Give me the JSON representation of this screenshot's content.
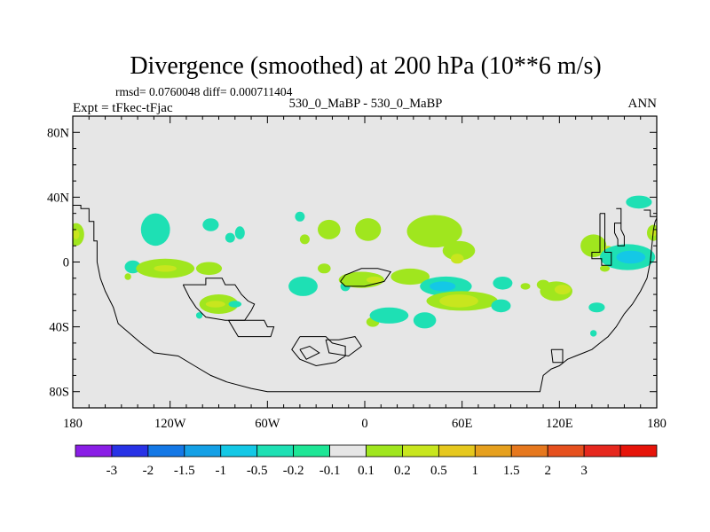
{
  "chart_data": {
    "type": "heatmap",
    "title": "Divergence (smoothed) at 200 hPa (10**6 m/s)",
    "stats": "rmsd= 0.0760048 diff= 0.000711404",
    "left_label": "Expt = tFkec-tFjac",
    "center_label": "530_0_MaBP - 530_0_MaBP",
    "right_label": "ANN",
    "xlim": [
      -180,
      180
    ],
    "ylim": [
      -90,
      90
    ],
    "x_ticks": [
      {
        "value": -180,
        "label": "180"
      },
      {
        "value": -120,
        "label": "120W"
      },
      {
        "value": -60,
        "label": "60W"
      },
      {
        "value": 0,
        "label": "0"
      },
      {
        "value": 60,
        "label": "60E"
      },
      {
        "value": 120,
        "label": "120E"
      },
      {
        "value": 180,
        "label": "180"
      }
    ],
    "y_ticks": [
      {
        "value": 80,
        "label": "80N"
      },
      {
        "value": 40,
        "label": "40N"
      },
      {
        "value": 0,
        "label": "0"
      },
      {
        "value": -40,
        "label": "40S"
      },
      {
        "value": -80,
        "label": "80S"
      }
    ],
    "background_color": "#e6e6e6",
    "colorbar": {
      "colors": [
        "#8a1ee6",
        "#2832e6",
        "#1478e6",
        "#14a0e6",
        "#14c8e6",
        "#1ee0b4",
        "#1ee696",
        "#e6e6e6",
        "#a0e61e",
        "#c8e61e",
        "#e6c81e",
        "#e6a01e",
        "#e6781e",
        "#e6501e",
        "#e6281e",
        "#e6140a"
      ],
      "labels": [
        "-3",
        "-2",
        "-1.5",
        "-1",
        "-0.5",
        "-0.2",
        "-0.1",
        "0.1",
        "0.2",
        "0.5",
        "1",
        "1.5",
        "2",
        "3"
      ]
    },
    "blobs": [
      {
        "lon": -178,
        "lat": 17,
        "rlon": 5,
        "rlat": 7,
        "level": 0.2
      },
      {
        "lon": -178,
        "lat": 17,
        "rlon": 2,
        "rlat": 3,
        "level": 0.5
      },
      {
        "lon": -129,
        "lat": 20,
        "rlon": 9,
        "rlat": 10,
        "level": -0.2
      },
      {
        "lon": -95,
        "lat": 23,
        "rlon": 5,
        "rlat": 4,
        "level": -0.2
      },
      {
        "lon": -83,
        "lat": 15,
        "rlon": 3,
        "rlat": 3,
        "level": -0.2
      },
      {
        "lon": -77,
        "lat": 18,
        "rlon": 3,
        "rlat": 4,
        "level": -0.2
      },
      {
        "lon": -40,
        "lat": 28,
        "rlon": 3,
        "rlat": 3,
        "level": -0.2
      },
      {
        "lon": -37,
        "lat": 14,
        "rlon": 3,
        "rlat": 3,
        "level": 0.2
      },
      {
        "lon": -22,
        "lat": 20,
        "rlon": 7,
        "rlat": 6,
        "level": 0.2
      },
      {
        "lon": 2,
        "lat": 20,
        "rlon": 8,
        "rlat": 7,
        "level": 0.2
      },
      {
        "lon": 43,
        "lat": 19,
        "rlon": 17,
        "rlat": 10,
        "level": 0.2
      },
      {
        "lon": 58,
        "lat": 7,
        "rlon": 10,
        "rlat": 6,
        "level": 0.2
      },
      {
        "lon": 57,
        "lat": 2,
        "rlon": 4,
        "rlat": 3,
        "level": 0.5
      },
      {
        "lon": -143,
        "lat": -3,
        "rlon": 5,
        "rlat": 4,
        "level": -0.2
      },
      {
        "lon": -123,
        "lat": -4,
        "rlon": 18,
        "rlat": 6,
        "level": 0.2
      },
      {
        "lon": -123,
        "lat": -4,
        "rlon": 7,
        "rlat": 2,
        "level": 0.5
      },
      {
        "lon": -96,
        "lat": -4,
        "rlon": 8,
        "rlat": 4,
        "level": 0.2
      },
      {
        "lon": -146,
        "lat": -9,
        "rlon": 2,
        "rlat": 2,
        "level": 0.2
      },
      {
        "lon": -25,
        "lat": -4,
        "rlon": 4,
        "rlat": 3,
        "level": 0.2
      },
      {
        "lon": -38,
        "lat": -15,
        "rlon": 9,
        "rlat": 6,
        "level": -0.2
      },
      {
        "lon": -12,
        "lat": -15,
        "rlon": 3,
        "rlat": 3,
        "level": -0.2
      },
      {
        "lon": -2,
        "lat": -11,
        "rlon": 14,
        "rlat": 5,
        "level": 0.2
      },
      {
        "lon": 6,
        "lat": -11,
        "rlon": 5,
        "rlat": 2,
        "level": 0.5
      },
      {
        "lon": 28,
        "lat": -9,
        "rlon": 12,
        "rlat": 5,
        "level": 0.2
      },
      {
        "lon": 50,
        "lat": -15,
        "rlon": 16,
        "rlat": 6,
        "level": -0.2
      },
      {
        "lon": 48,
        "lat": -15,
        "rlon": 8,
        "rlat": 3,
        "level": -0.5
      },
      {
        "lon": 85,
        "lat": -13,
        "rlon": 6,
        "rlat": 4,
        "level": -0.2
      },
      {
        "lon": 99,
        "lat": -15,
        "rlon": 3,
        "rlat": 2,
        "level": 0.2
      },
      {
        "lon": 110,
        "lat": -14,
        "rlon": 4,
        "rlat": 3,
        "level": 0.2
      },
      {
        "lon": 118,
        "lat": -18,
        "rlon": 10,
        "rlat": 6,
        "level": 0.2
      },
      {
        "lon": 122,
        "lat": -17,
        "rlon": 5,
        "rlat": 3,
        "level": 0.5
      },
      {
        "lon": 60,
        "lat": -24,
        "rlon": 22,
        "rlat": 6,
        "level": 0.2
      },
      {
        "lon": 58,
        "lat": -24,
        "rlon": 12,
        "rlat": 4,
        "level": 0.5
      },
      {
        "lon": -90,
        "lat": -26,
        "rlon": 12,
        "rlat": 6,
        "level": 0.2
      },
      {
        "lon": -92,
        "lat": -26,
        "rlon": 6,
        "rlat": 2,
        "level": 0.5
      },
      {
        "lon": -80,
        "lat": -26,
        "rlon": 4,
        "rlat": 2,
        "level": -0.2
      },
      {
        "lon": -102,
        "lat": -33,
        "rlon": 2,
        "rlat": 2,
        "level": -0.2
      },
      {
        "lon": 5,
        "lat": -37,
        "rlon": 4,
        "rlat": 3,
        "level": 0.2
      },
      {
        "lon": 15,
        "lat": -33,
        "rlon": 12,
        "rlat": 5,
        "level": -0.2
      },
      {
        "lon": 37,
        "lat": -36,
        "rlon": 7,
        "rlat": 5,
        "level": -0.2
      },
      {
        "lon": 84,
        "lat": -27,
        "rlon": 6,
        "rlat": 4,
        "level": -0.2
      },
      {
        "lon": 143,
        "lat": -28,
        "rlon": 5,
        "rlat": 3,
        "level": -0.2
      },
      {
        "lon": 141,
        "lat": -44,
        "rlon": 2,
        "rlat": 2,
        "level": -0.2
      },
      {
        "lon": 169,
        "lat": 37,
        "rlon": 8,
        "rlat": 4,
        "level": -0.2
      },
      {
        "lon": 141,
        "lat": 10,
        "rlon": 8,
        "rlat": 7,
        "level": 0.2
      },
      {
        "lon": 150,
        "lat": 7,
        "rlon": 3,
        "rlat": 3,
        "level": 0.5
      },
      {
        "lon": 148,
        "lat": -4,
        "rlon": 3,
        "rlat": 2,
        "level": 0.2
      },
      {
        "lon": 162,
        "lat": 3,
        "rlon": 17,
        "rlat": 8,
        "level": -0.2
      },
      {
        "lon": 164,
        "lat": 3,
        "rlon": 9,
        "rlat": 4,
        "level": -0.5
      },
      {
        "lon": 178,
        "lat": 18,
        "rlon": 4,
        "rlat": 5,
        "level": 0.2
      },
      {
        "lon": 178,
        "lat": 18,
        "rlon": 2,
        "rlat": 2,
        "level": 0.5
      }
    ],
    "coastlines": [
      [
        [
          -180,
          35
        ],
        [
          -175,
          35
        ],
        [
          -175,
          33
        ],
        [
          -170,
          33
        ],
        [
          -170,
          25
        ],
        [
          -167,
          25
        ],
        [
          -167,
          13
        ],
        [
          -165,
          13
        ],
        [
          -165,
          0
        ],
        [
          -163,
          -10
        ],
        [
          -160,
          -18
        ],
        [
          -155,
          -28
        ],
        [
          -152,
          -38
        ],
        [
          -145,
          -44
        ],
        [
          -138,
          -50
        ],
        [
          -130,
          -56
        ],
        [
          -115,
          -58
        ],
        [
          -105,
          -64
        ],
        [
          -95,
          -70
        ],
        [
          -85,
          -74
        ],
        [
          -70,
          -78
        ],
        [
          -60,
          -80
        ],
        [
          -40,
          -80
        ],
        [
          -20,
          -80
        ],
        [
          0,
          -80
        ],
        [
          20,
          -80
        ],
        [
          40,
          -80
        ],
        [
          60,
          -80
        ],
        [
          80,
          -80
        ],
        [
          100,
          -80
        ],
        [
          108,
          -80
        ],
        [
          110,
          -70
        ],
        [
          115,
          -66
        ],
        [
          120,
          -64
        ],
        [
          125,
          -60
        ],
        [
          130,
          -58
        ],
        [
          135,
          -56
        ],
        [
          140,
          -54
        ],
        [
          145,
          -50
        ],
        [
          150,
          -46
        ],
        [
          155,
          -40
        ],
        [
          160,
          -32
        ],
        [
          165,
          -26
        ],
        [
          170,
          -18
        ],
        [
          174,
          -10
        ],
        [
          176,
          0
        ],
        [
          177,
          10
        ],
        [
          178,
          20
        ],
        [
          179,
          25
        ],
        [
          180,
          27
        ]
      ],
      [
        [
          -112,
          -14
        ],
        [
          -98,
          -14
        ],
        [
          -98,
          -10
        ],
        [
          -88,
          -10
        ],
        [
          -86,
          -14
        ],
        [
          -80,
          -14
        ],
        [
          -76,
          -20
        ],
        [
          -72,
          -24
        ],
        [
          -68,
          -26
        ],
        [
          -70,
          -30
        ],
        [
          -74,
          -36
        ],
        [
          -86,
          -36
        ],
        [
          -98,
          -34
        ],
        [
          -104,
          -28
        ],
        [
          -108,
          -22
        ],
        [
          -112,
          -14
        ]
      ],
      [
        [
          -84,
          -36
        ],
        [
          -62,
          -36
        ],
        [
          -60,
          -40
        ],
        [
          -56,
          -40
        ],
        [
          -58,
          -46
        ],
        [
          -78,
          -46
        ],
        [
          -84,
          -36
        ]
      ],
      [
        [
          -15,
          -12
        ],
        [
          -12,
          -8
        ],
        [
          -2,
          -4
        ],
        [
          8,
          -4
        ],
        [
          16,
          -6
        ],
        [
          12,
          -12
        ],
        [
          0,
          -15
        ],
        [
          -12,
          -15
        ],
        [
          -15,
          -12
        ]
      ],
      [
        [
          -40,
          -46
        ],
        [
          -24,
          -46
        ],
        [
          -20,
          -50
        ],
        [
          -12,
          -52
        ],
        [
          -12,
          -58
        ],
        [
          -18,
          -62
        ],
        [
          -30,
          -64
        ],
        [
          -40,
          -60
        ],
        [
          -45,
          -54
        ],
        [
          -40,
          -46
        ]
      ],
      [
        [
          -40,
          -54
        ],
        [
          -34,
          -52
        ],
        [
          -28,
          -56
        ],
        [
          -36,
          -60
        ],
        [
          -40,
          -54
        ]
      ],
      [
        [
          -24,
          -48
        ],
        [
          -16,
          -48
        ],
        [
          -6,
          -46
        ],
        [
          -2,
          -52
        ],
        [
          -10,
          -58
        ],
        [
          -22,
          -56
        ],
        [
          -24,
          -48
        ]
      ],
      [
        [
          115,
          -54
        ],
        [
          122,
          -54
        ],
        [
          122,
          -62
        ],
        [
          116,
          -62
        ],
        [
          115,
          -54
        ]
      ],
      [
        [
          145,
          30
        ],
        [
          148,
          30
        ],
        [
          148,
          6
        ],
        [
          152,
          6
        ],
        [
          152,
          -2
        ],
        [
          146,
          -2
        ],
        [
          146,
          2
        ],
        [
          140,
          2
        ],
        [
          140,
          6
        ],
        [
          145,
          6
        ],
        [
          145,
          30
        ]
      ],
      [
        [
          155,
          33
        ],
        [
          158,
          33
        ],
        [
          158,
          24
        ],
        [
          154,
          24
        ],
        [
          154,
          18
        ],
        [
          156,
          14
        ],
        [
          156,
          10
        ],
        [
          160,
          10
        ],
        [
          160,
          16
        ],
        [
          158,
          20
        ],
        [
          158,
          33
        ]
      ],
      [
        [
          172,
          32
        ],
        [
          176,
          32
        ],
        [
          176,
          28
        ],
        [
          180,
          28
        ]
      ]
    ]
  }
}
